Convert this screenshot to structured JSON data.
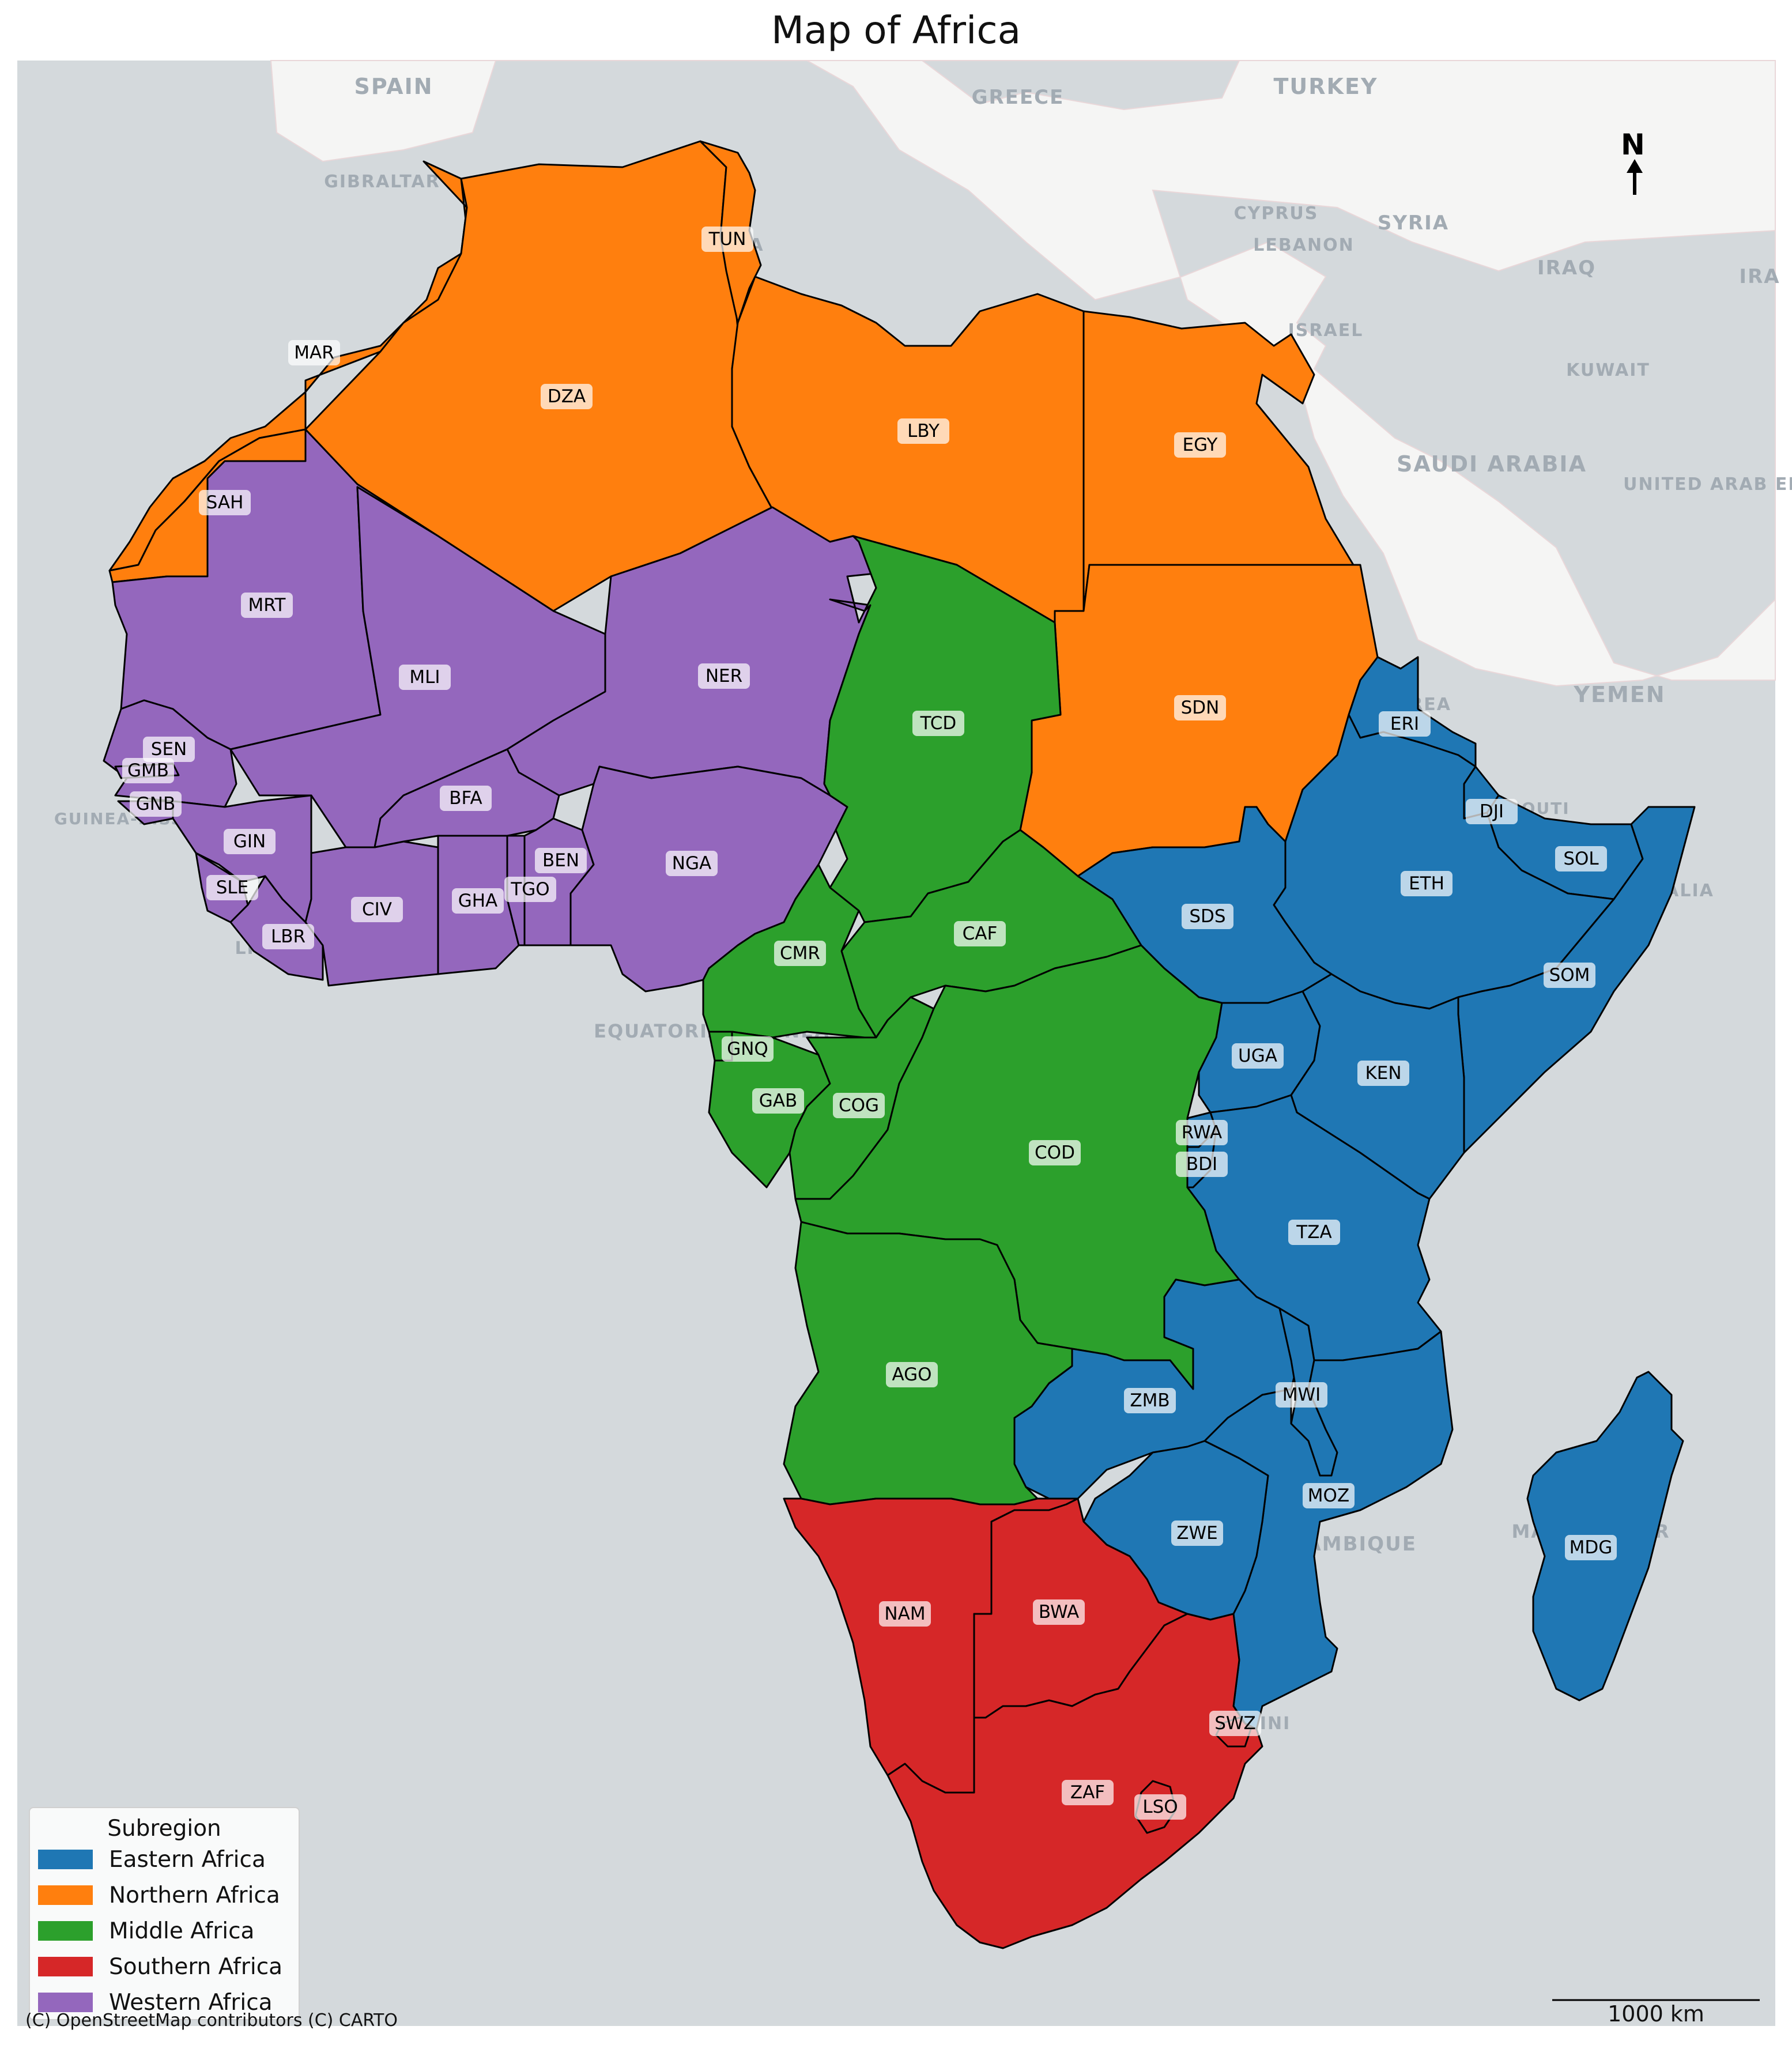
{
  "title": "Map of Africa",
  "colors": {
    "Eastern Africa": "#1f77b4",
    "Northern Africa": "#ff7f0e",
    "Middle Africa": "#2ca02c",
    "Southern Africa": "#d62728",
    "Western Africa": "#9467bd",
    "sea": "#d4d9dc",
    "land": "#f5f5f4"
  },
  "legend": {
    "title": "Subregion",
    "items": [
      "Eastern Africa",
      "Northern Africa",
      "Middle Africa",
      "Southern Africa",
      "Western Africa"
    ]
  },
  "basemap_labels": [
    "SPAIN",
    "GREECE",
    "TURKEY",
    "GIBRALTAR",
    "CYPRUS",
    "SYRIA",
    "LEBANON",
    "IRAQ",
    "IRA",
    "ISRAEL",
    "KUWAIT",
    "SAUDI ARABIA",
    "UNITED ARAB EMIRATES",
    "YEMEN",
    "DJIBOUTI",
    "EQUATORIAL GUINEA",
    "MADAGASCAR",
    "MOZAMBIQUE",
    "ESWATINI",
    "LIBERIA",
    "SOMALIA",
    "ERITREA",
    "TUNISIA",
    "GUINEA-BISSAU"
  ],
  "countries": [
    {
      "code": "MAR",
      "region": "Northern Africa"
    },
    {
      "code": "SAH",
      "region": "Northern Africa"
    },
    {
      "code": "DZA",
      "region": "Northern Africa"
    },
    {
      "code": "TUN",
      "region": "Northern Africa"
    },
    {
      "code": "LBY",
      "region": "Northern Africa"
    },
    {
      "code": "EGY",
      "region": "Northern Africa"
    },
    {
      "code": "SDN",
      "region": "Northern Africa"
    },
    {
      "code": "MRT",
      "region": "Western Africa"
    },
    {
      "code": "MLI",
      "region": "Western Africa"
    },
    {
      "code": "NER",
      "region": "Western Africa"
    },
    {
      "code": "SEN",
      "region": "Western Africa"
    },
    {
      "code": "GMB",
      "region": "Western Africa"
    },
    {
      "code": "GNB",
      "region": "Western Africa"
    },
    {
      "code": "GIN",
      "region": "Western Africa"
    },
    {
      "code": "SLE",
      "region": "Western Africa"
    },
    {
      "code": "LBR",
      "region": "Western Africa"
    },
    {
      "code": "CIV",
      "region": "Western Africa"
    },
    {
      "code": "BFA",
      "region": "Western Africa"
    },
    {
      "code": "GHA",
      "region": "Western Africa"
    },
    {
      "code": "TGO",
      "region": "Western Africa"
    },
    {
      "code": "BEN",
      "region": "Western Africa"
    },
    {
      "code": "NGA",
      "region": "Western Africa"
    },
    {
      "code": "TCD",
      "region": "Middle Africa"
    },
    {
      "code": "CAF",
      "region": "Middle Africa"
    },
    {
      "code": "CMR",
      "region": "Middle Africa"
    },
    {
      "code": "GNQ",
      "region": "Middle Africa"
    },
    {
      "code": "GAB",
      "region": "Middle Africa"
    },
    {
      "code": "COG",
      "region": "Middle Africa"
    },
    {
      "code": "COD",
      "region": "Middle Africa"
    },
    {
      "code": "AGO",
      "region": "Middle Africa"
    },
    {
      "code": "ERI",
      "region": "Eastern Africa"
    },
    {
      "code": "DJI",
      "region": "Eastern Africa"
    },
    {
      "code": "SOL",
      "region": "Eastern Africa"
    },
    {
      "code": "ETH",
      "region": "Eastern Africa"
    },
    {
      "code": "SOM",
      "region": "Eastern Africa"
    },
    {
      "code": "SDS",
      "region": "Eastern Africa"
    },
    {
      "code": "UGA",
      "region": "Eastern Africa"
    },
    {
      "code": "KEN",
      "region": "Eastern Africa"
    },
    {
      "code": "RWA",
      "region": "Eastern Africa"
    },
    {
      "code": "BDI",
      "region": "Eastern Africa"
    },
    {
      "code": "TZA",
      "region": "Eastern Africa"
    },
    {
      "code": "ZMB",
      "region": "Eastern Africa"
    },
    {
      "code": "MWI",
      "region": "Eastern Africa"
    },
    {
      "code": "MOZ",
      "region": "Eastern Africa"
    },
    {
      "code": "ZWE",
      "region": "Eastern Africa"
    },
    {
      "code": "MDG",
      "region": "Eastern Africa"
    },
    {
      "code": "NAM",
      "region": "Southern Africa"
    },
    {
      "code": "BWA",
      "region": "Southern Africa"
    },
    {
      "code": "ZAF",
      "region": "Southern Africa"
    },
    {
      "code": "SWZ",
      "region": "Southern Africa"
    },
    {
      "code": "LSO",
      "region": "Southern Africa"
    }
  ],
  "north_arrow": "N",
  "scale_bar": {
    "label": "1000 km",
    "length_km": 1000
  },
  "attribution": "(C) OpenStreetMap contributors (C) CARTO"
}
